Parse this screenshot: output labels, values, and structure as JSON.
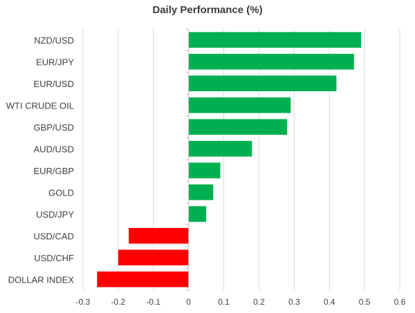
{
  "chart_data": {
    "type": "bar",
    "orientation": "horizontal",
    "title": "Daily Performance (%)",
    "categories": [
      "NZD/USD",
      "EUR/JPY",
      "EUR/USD",
      "WTI CRUDE OIL",
      "GBP/USD",
      "AUD/USD",
      "EUR/GBP",
      "GOLD",
      "USD/JPY",
      "USD/CAD",
      "USD/CHF",
      "DOLLAR INDEX"
    ],
    "values": [
      0.49,
      0.47,
      0.42,
      0.29,
      0.28,
      0.18,
      0.09,
      0.07,
      0.05,
      -0.17,
      -0.2,
      -0.26
    ],
    "xlim": [
      -0.3,
      0.6
    ],
    "xticks": [
      "-0.3",
      "-0.2",
      "-0.1",
      "0",
      "0.1",
      "0.2",
      "0.3",
      "0.4",
      "0.5",
      "0.6"
    ],
    "grid": "vertical",
    "colors": {
      "positive": "#00b050",
      "negative": "#ff0000",
      "grid": "#d9d9d9",
      "axis": "#bfbfbf"
    }
  }
}
